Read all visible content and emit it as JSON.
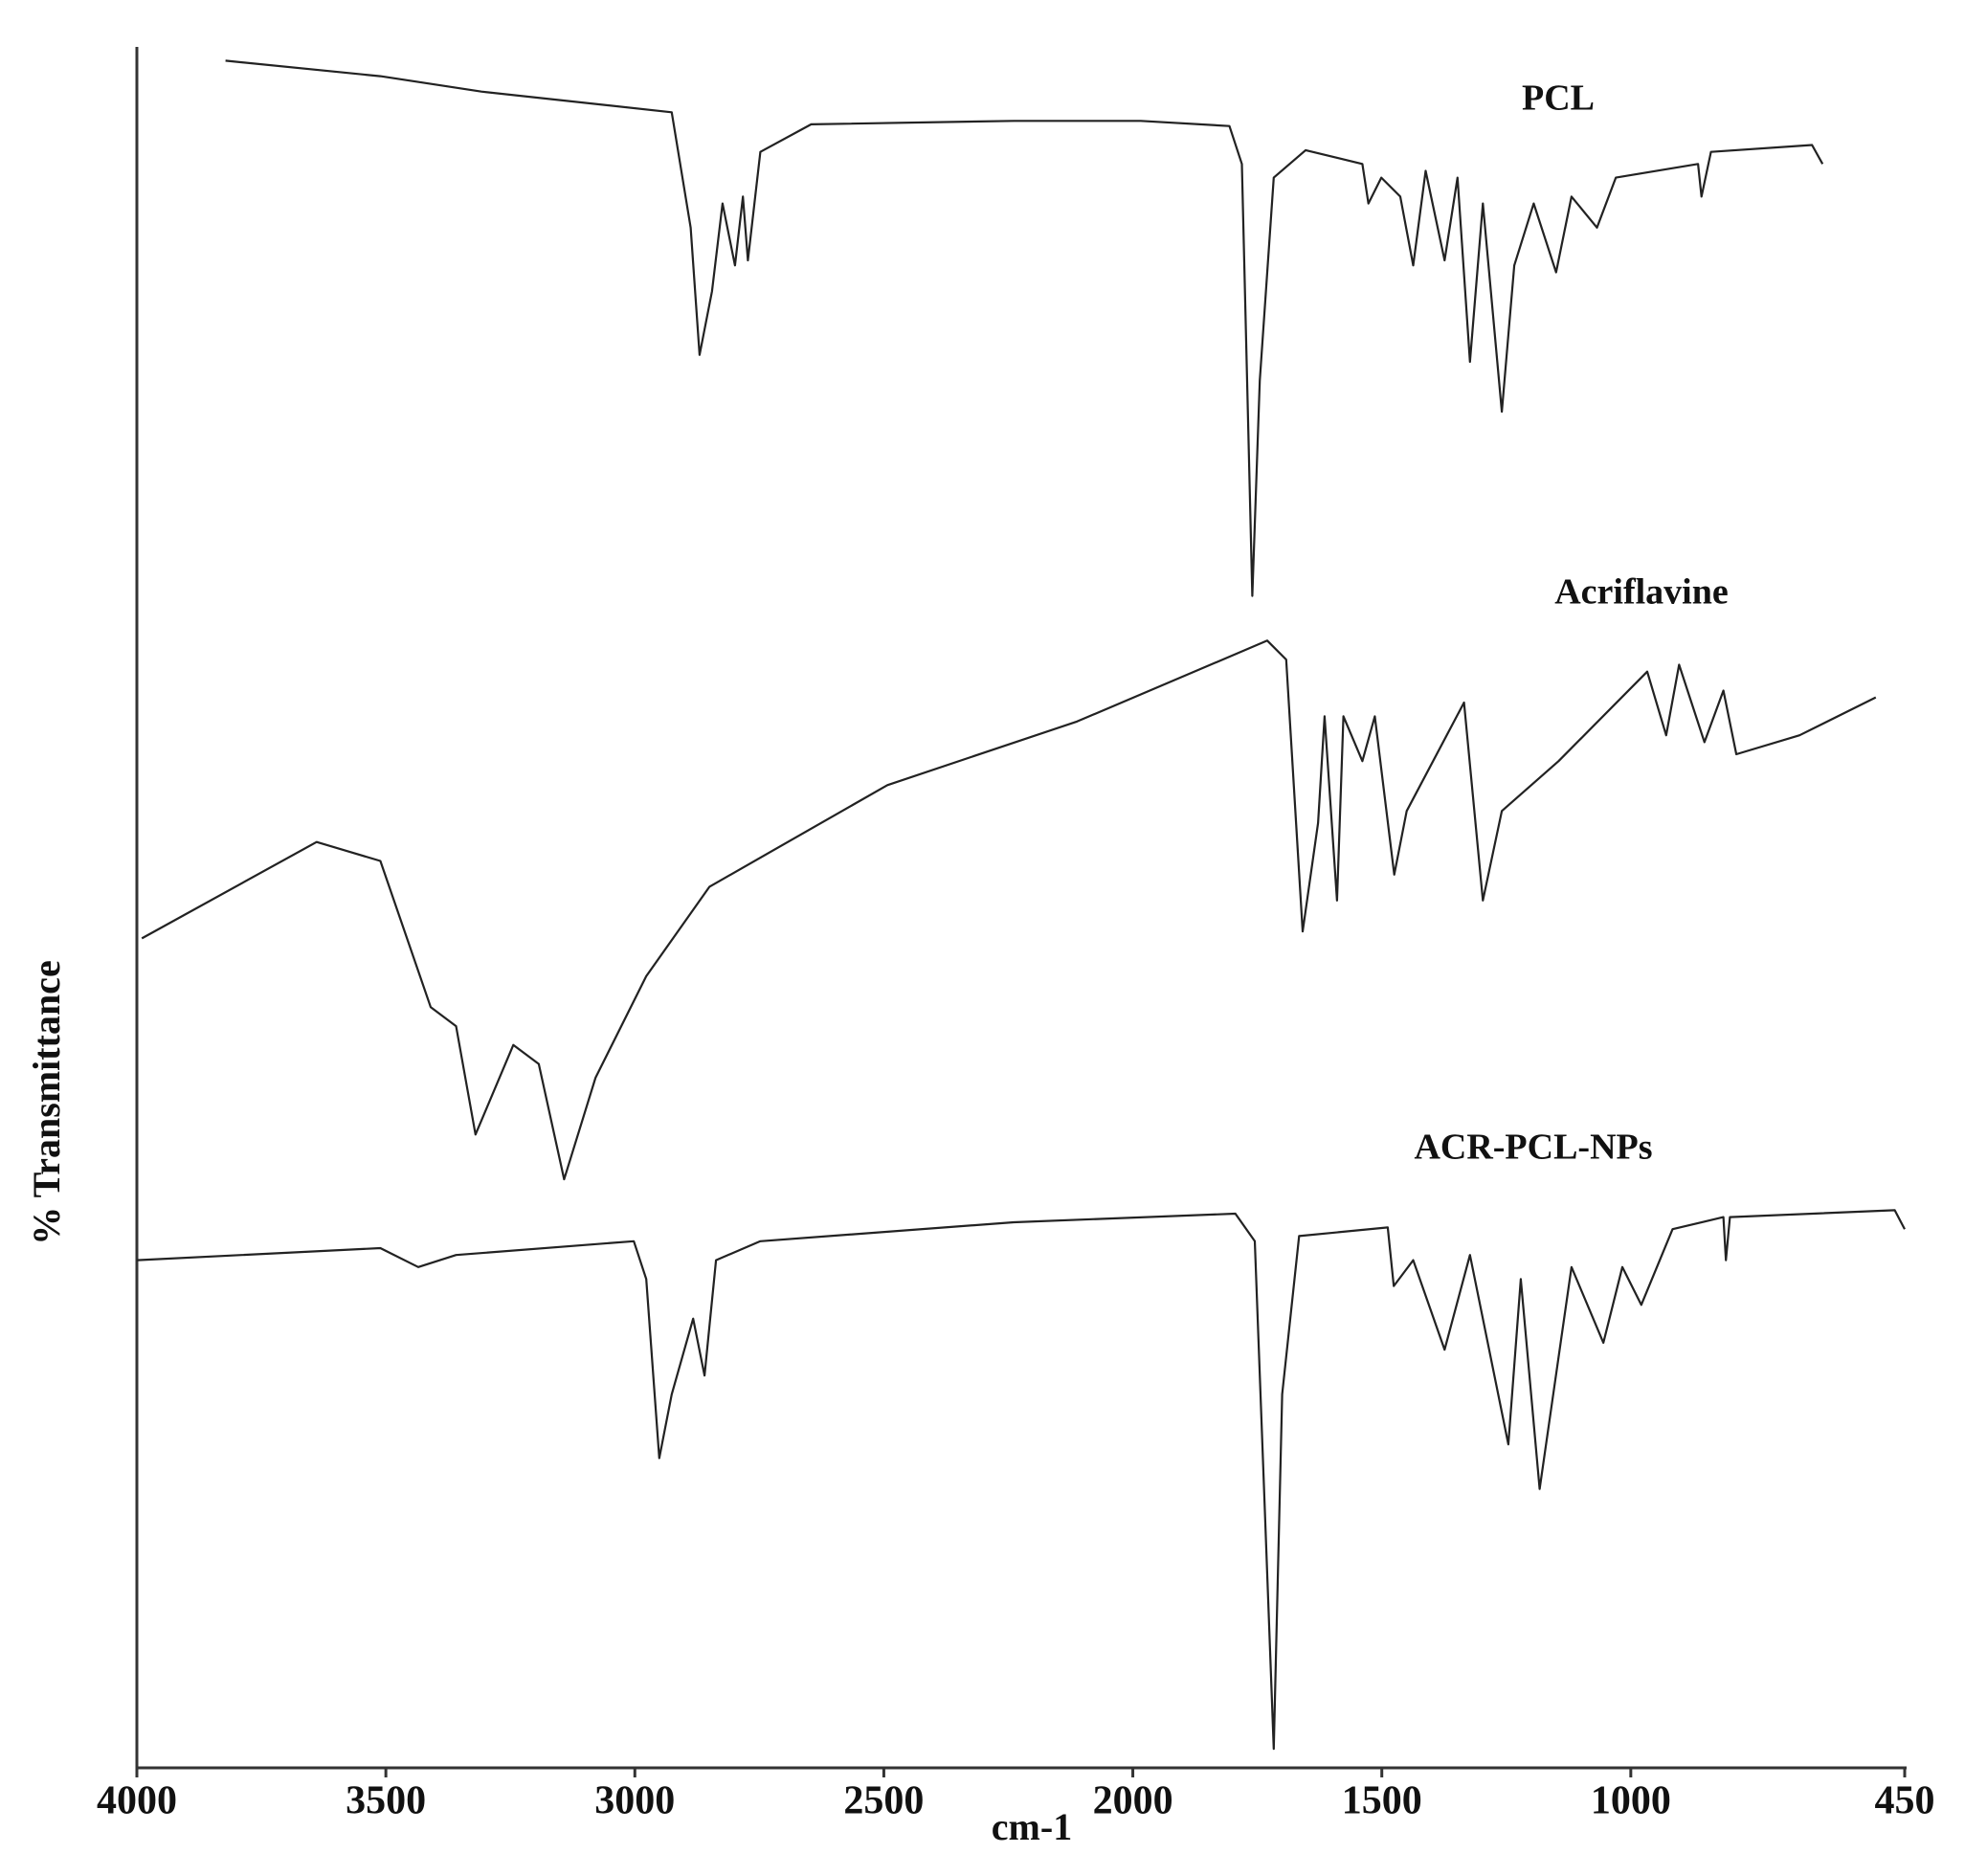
{
  "chart_data": {
    "type": "line",
    "x_label": "cm-1",
    "y_label": "% Transmittance",
    "xlim": [
      4000,
      450
    ],
    "ylim": [
      0,
      100
    ],
    "xticks": [
      4000,
      3500,
      3000,
      2500,
      2000,
      1500,
      1000,
      450
    ],
    "series": [
      {
        "name": "PCL",
        "color": "#222222",
        "x": [
          3822,
          3511,
          3308,
          2926,
          2888,
          2870,
          2845,
          2824,
          2799,
          2783,
          2773,
          2748,
          2646,
          2239,
          1984,
          1806,
          1781,
          1760,
          1745,
          1717,
          1653,
          1539,
          1527,
          1501,
          1463,
          1437,
          1412,
          1374,
          1348,
          1323,
          1297,
          1259,
          1234,
          1195,
          1150,
          1119,
          1068,
          1030,
          865,
          858,
          839,
          636,
          615
        ],
        "values": [
          99.2,
          98.3,
          97.4,
          96.2,
          89.5,
          82.1,
          85.8,
          90.9,
          87.3,
          91.3,
          87.6,
          93.9,
          95.5,
          95.7,
          95.7,
          95.4,
          93.2,
          68.1,
          80.6,
          92.4,
          94.0,
          93.2,
          90.9,
          92.4,
          91.3,
          87.3,
          92.8,
          87.6,
          92.4,
          81.7,
          90.9,
          78.8,
          87.3,
          90.9,
          86.9,
          91.3,
          89.5,
          92.4,
          93.2,
          91.3,
          93.9,
          94.3,
          93.2
        ]
      },
      {
        "name": "Acriflavine",
        "color": "#222222",
        "x": [
          3990,
          3639,
          3511,
          3410,
          3359,
          3320,
          3244,
          3193,
          3142,
          3079,
          2977,
          2850,
          2493,
          2112,
          1730,
          1692,
          1659,
          1628,
          1615,
          1590,
          1577,
          1539,
          1514,
          1475,
          1450,
          1335,
          1297,
          1259,
          1145,
          967,
          929,
          903,
          852,
          814,
          788,
          661,
          508
        ],
        "values": [
          48.2,
          53.8,
          52.7,
          44.2,
          43.1,
          36.8,
          42.0,
          40.9,
          34.2,
          40.1,
          46.0,
          51.2,
          57.1,
          60.8,
          65.5,
          64.4,
          48.6,
          54.9,
          61.1,
          50.4,
          61.1,
          58.5,
          61.1,
          51.9,
          55.6,
          61.9,
          50.4,
          55.6,
          58.5,
          63.7,
          60.0,
          64.1,
          59.6,
          62.6,
          58.9,
          60.0,
          62.2
        ]
      },
      {
        "name": "ACR-PCL-NPs",
        "color": "#222222",
        "x": [
          4000,
          3511,
          3435,
          3359,
          3002,
          2977,
          2951,
          2926,
          2883,
          2860,
          2837,
          2748,
          2239,
          1794,
          1755,
          1717,
          1700,
          1666,
          1488,
          1476,
          1437,
          1374,
          1323,
          1246,
          1221,
          1183,
          1119,
          1055,
          1017,
          979,
          916,
          814,
          809,
          801,
          470,
          450
        ],
        "values": [
          29.5,
          30.2,
          29.1,
          29.8,
          30.6,
          28.4,
          18.0,
          21.7,
          26.1,
          22.8,
          29.5,
          30.6,
          31.7,
          32.2,
          30.6,
          1.1,
          21.7,
          30.9,
          31.4,
          28.0,
          29.5,
          24.3,
          29.8,
          18.8,
          28.4,
          16.2,
          29.1,
          24.7,
          29.1,
          26.9,
          31.3,
          32.0,
          29.5,
          32.0,
          32.4,
          31.3
        ]
      }
    ]
  }
}
